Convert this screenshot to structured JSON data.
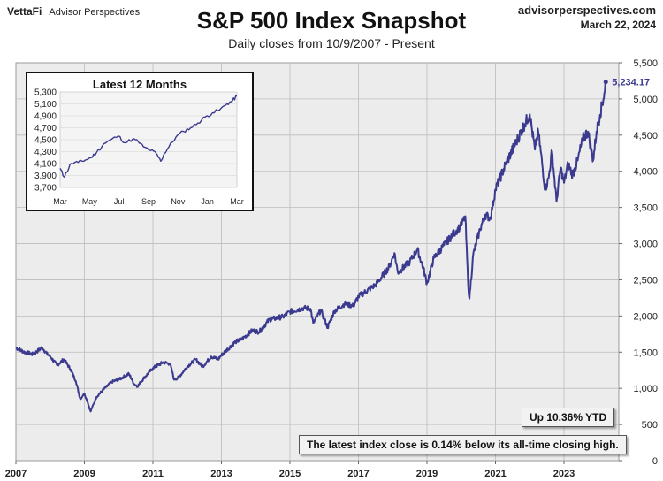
{
  "header": {
    "brand_logo": "VettaFi",
    "brand_name": "Advisor Perspectives",
    "site": "advisorperspectives.com",
    "date": "March 22, 2024"
  },
  "chart_data": [
    {
      "type": "line",
      "title": "S&P 500 Index Snapshot",
      "subtitle": "Daily closes from 10/9/2007 - Present",
      "x_ticks": [
        "2007",
        "2009",
        "2011",
        "2013",
        "2015",
        "2017",
        "2019",
        "2021",
        "2023"
      ],
      "y_ticks": [
        "0",
        "500",
        "1,000",
        "1,500",
        "2,000",
        "2,500",
        "3,000",
        "3,500",
        "4,000",
        "4,500",
        "5,000",
        "5,500"
      ],
      "ylim": [
        0,
        5500
      ],
      "xlim": [
        2007.0,
        2024.6
      ],
      "grid": true,
      "line_color": "#3b3a8f",
      "last_value_label": "5,234.17",
      "series": [
        {
          "values": [
            [
              2007.0,
              1560
            ],
            [
              2007.25,
              1500
            ],
            [
              2007.5,
              1470
            ],
            [
              2007.77,
              1565
            ],
            [
              2007.9,
              1480
            ],
            [
              2008.0,
              1440
            ],
            [
              2008.2,
              1320
            ],
            [
              2008.4,
              1400
            ],
            [
              2008.6,
              1260
            ],
            [
              2008.75,
              1100
            ],
            [
              2008.88,
              850
            ],
            [
              2008.95,
              900
            ],
            [
              2009.0,
              930
            ],
            [
              2009.1,
              800
            ],
            [
              2009.18,
              680
            ],
            [
              2009.35,
              880
            ],
            [
              2009.55,
              980
            ],
            [
              2009.8,
              1090
            ],
            [
              2010.0,
              1120
            ],
            [
              2010.3,
              1200
            ],
            [
              2010.45,
              1060
            ],
            [
              2010.55,
              1030
            ],
            [
              2010.75,
              1150
            ],
            [
              2011.0,
              1280
            ],
            [
              2011.3,
              1360
            ],
            [
              2011.5,
              1340
            ],
            [
              2011.62,
              1120
            ],
            [
              2011.75,
              1150
            ],
            [
              2012.0,
              1300
            ],
            [
              2012.25,
              1400
            ],
            [
              2012.45,
              1300
            ],
            [
              2012.7,
              1440
            ],
            [
              2012.9,
              1400
            ],
            [
              2013.0,
              1460
            ],
            [
              2013.4,
              1640
            ],
            [
              2013.6,
              1680
            ],
            [
              2013.9,
              1800
            ],
            [
              2014.1,
              1780
            ],
            [
              2014.4,
              1950
            ],
            [
              2014.8,
              1990
            ],
            [
              2015.0,
              2060
            ],
            [
              2015.4,
              2110
            ],
            [
              2015.6,
              2100
            ],
            [
              2015.68,
              1900
            ],
            [
              2015.9,
              2080
            ],
            [
              2016.1,
              1840
            ],
            [
              2016.3,
              2070
            ],
            [
              2016.6,
              2170
            ],
            [
              2016.85,
              2140
            ],
            [
              2017.0,
              2270
            ],
            [
              2017.5,
              2430
            ],
            [
              2017.9,
              2680
            ],
            [
              2018.05,
              2870
            ],
            [
              2018.15,
              2600
            ],
            [
              2018.5,
              2750
            ],
            [
              2018.72,
              2920
            ],
            [
              2018.9,
              2650
            ],
            [
              2019.0,
              2450
            ],
            [
              2019.2,
              2800
            ],
            [
              2019.5,
              2980
            ],
            [
              2019.8,
              3150
            ],
            [
              2020.0,
              3250
            ],
            [
              2020.12,
              3380
            ],
            [
              2020.2,
              2450
            ],
            [
              2020.24,
              2240
            ],
            [
              2020.35,
              2850
            ],
            [
              2020.55,
              3200
            ],
            [
              2020.7,
              3400
            ],
            [
              2020.85,
              3350
            ],
            [
              2021.0,
              3750
            ],
            [
              2021.3,
              4100
            ],
            [
              2021.6,
              4400
            ],
            [
              2021.85,
              4650
            ],
            [
              2022.0,
              4790
            ],
            [
              2022.15,
              4300
            ],
            [
              2022.25,
              4550
            ],
            [
              2022.45,
              3750
            ],
            [
              2022.55,
              3900
            ],
            [
              2022.65,
              4280
            ],
            [
              2022.78,
              3580
            ],
            [
              2022.9,
              4050
            ],
            [
              2023.0,
              3840
            ],
            [
              2023.12,
              4100
            ],
            [
              2023.25,
              3950
            ],
            [
              2023.4,
              4150
            ],
            [
              2023.55,
              4450
            ],
            [
              2023.7,
              4550
            ],
            [
              2023.85,
              4150
            ],
            [
              2023.95,
              4550
            ],
            [
              2024.05,
              4780
            ],
            [
              2024.15,
              5000
            ],
            [
              2024.22,
              5234.17
            ]
          ]
        }
      ],
      "annotations": [
        "Up 10.36% YTD",
        "The latest index close is 0.14% below its all-time closing high."
      ]
    },
    {
      "type": "line",
      "title": "Latest 12 Months",
      "x_ticks": [
        "Mar",
        "May",
        "Jul",
        "Sep",
        "Nov",
        "Jan",
        "Mar"
      ],
      "y_ticks": [
        "3,700",
        "3,900",
        "4,100",
        "4,300",
        "4,500",
        "4,700",
        "4,900",
        "5,100",
        "5,300"
      ],
      "ylim": [
        3700,
        5300
      ],
      "line_color": "#3b3a8f",
      "series": [
        {
          "values": [
            [
              0.0,
              4020
            ],
            [
              0.2,
              3880
            ],
            [
              0.35,
              3950
            ],
            [
              0.6,
              4100
            ],
            [
              1.0,
              4120
            ],
            [
              1.4,
              4160
            ],
            [
              1.7,
              4200
            ],
            [
              2.0,
              4280
            ],
            [
              2.4,
              4430
            ],
            [
              2.8,
              4500
            ],
            [
              3.2,
              4560
            ],
            [
              3.6,
              4450
            ],
            [
              4.0,
              4510
            ],
            [
              4.3,
              4470
            ],
            [
              4.6,
              4380
            ],
            [
              5.0,
              4320
            ],
            [
              5.3,
              4270
            ],
            [
              5.55,
              4140
            ],
            [
              5.75,
              4270
            ],
            [
              6.0,
              4380
            ],
            [
              6.4,
              4550
            ],
            [
              6.8,
              4640
            ],
            [
              7.2,
              4700
            ],
            [
              7.6,
              4780
            ],
            [
              8.0,
              4880
            ],
            [
              8.4,
              4950
            ],
            [
              8.8,
              5000
            ],
            [
              9.2,
              5100
            ],
            [
              9.5,
              5150
            ],
            [
              9.75,
              5234
            ]
          ]
        }
      ]
    }
  ]
}
